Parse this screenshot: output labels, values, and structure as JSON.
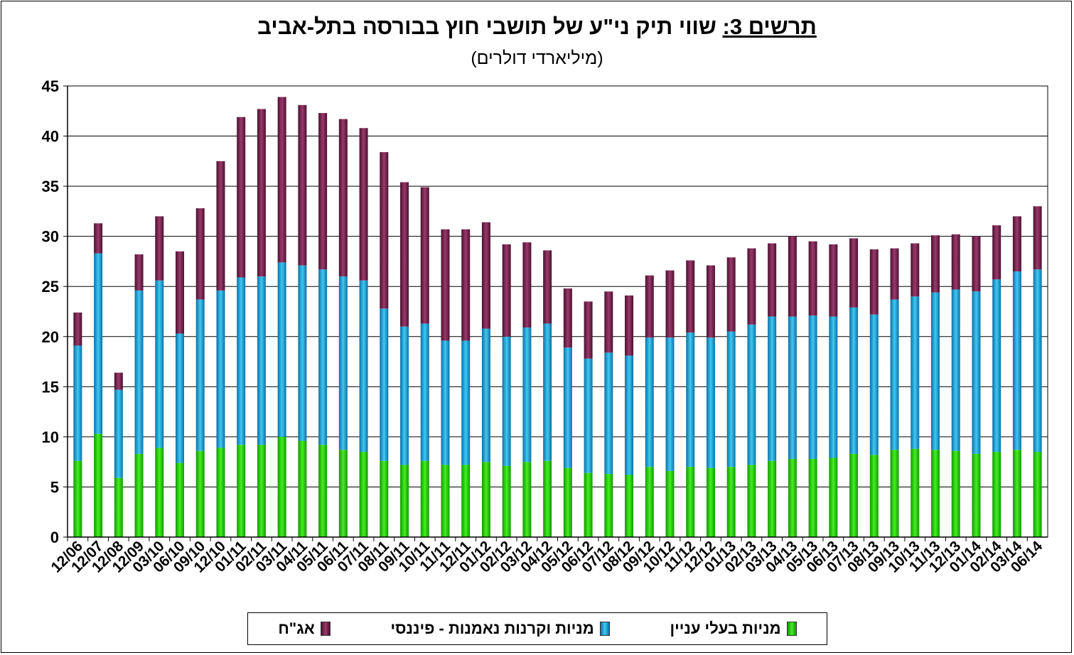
{
  "page": {
    "title_lead": "תרשים 3:",
    "title_rest": " שווי תיק ני\"ע של תושבי חוץ בבורסה בתל-אביב",
    "subtitle": "(מיליארדי דולרים)"
  },
  "colors": {
    "equity_interest": "#22cc00",
    "equity_funds": "#1aa0dc",
    "bonds": "#7a2a52",
    "grid": "#000000"
  },
  "chart_data": {
    "type": "bar",
    "stacked": true,
    "title": "תרשים 3: שווי תיק ני\"ע של תושבי חוץ בבורסה בתל-אביב",
    "subtitle": "(מיליארדי דולרים)",
    "ylim": [
      0,
      45
    ],
    "yticks": [
      0,
      5,
      10,
      15,
      20,
      25,
      30,
      35,
      40,
      45
    ],
    "grid": true,
    "legend_position": "bottom",
    "categories": [
      "12/06",
      "12/07",
      "12/08",
      "12/09",
      "03/10",
      "06/10",
      "09/10",
      "12/10",
      "01/11",
      "02/11",
      "03/11",
      "04/11",
      "05/11",
      "06/11",
      "07/11",
      "08/11",
      "09/11",
      "10/11",
      "11/11",
      "12/11",
      "01/12",
      "02/12",
      "03/12",
      "04/12",
      "05/12",
      "06/12",
      "07/12",
      "08/12",
      "09/12",
      "10/12",
      "11/12",
      "12/12",
      "01/13",
      "02/13",
      "03/13",
      "04/13",
      "05/13",
      "06/13",
      "07/13",
      "08/13",
      "09/13",
      "10/13",
      "11/13",
      "12/13",
      "01/14",
      "02/14",
      "03/14",
      "06/14"
    ],
    "series": [
      {
        "name": "מניות בעלי עניין",
        "values": [
          7.6,
          10.3,
          5.9,
          8.3,
          8.9,
          7.4,
          8.6,
          8.9,
          9.2,
          9.2,
          10.0,
          9.6,
          9.2,
          8.7,
          8.5,
          7.6,
          7.2,
          7.6,
          7.2,
          7.2,
          7.5,
          7.1,
          7.5,
          7.6,
          6.9,
          6.4,
          6.3,
          6.2,
          7.0,
          6.6,
          7.0,
          6.9,
          7.0,
          7.2,
          7.6,
          7.8,
          7.8,
          7.9,
          8.3,
          8.2,
          8.7,
          8.8,
          8.7,
          8.6,
          8.3,
          8.5,
          8.7,
          8.5
        ]
      },
      {
        "name": "מניות וקרנות נאמנות - פיננסי",
        "values": [
          11.5,
          18.0,
          8.8,
          16.3,
          16.7,
          12.9,
          15.1,
          15.7,
          16.7,
          16.8,
          17.4,
          17.5,
          17.5,
          17.3,
          17.1,
          15.2,
          13.8,
          13.7,
          12.4,
          12.4,
          13.3,
          12.9,
          13.4,
          13.7,
          12.0,
          11.4,
          12.1,
          11.9,
          12.9,
          13.3,
          13.4,
          13.0,
          13.5,
          14.0,
          14.4,
          14.2,
          14.3,
          14.1,
          14.6,
          14.0,
          15.0,
          15.2,
          15.7,
          16.1,
          16.2,
          17.2,
          17.8,
          18.2
        ]
      },
      {
        "name": "אג\"ח",
        "values": [
          3.3,
          3.0,
          1.7,
          3.6,
          6.4,
          8.2,
          9.1,
          12.9,
          16.0,
          16.7,
          16.5,
          16.0,
          15.6,
          15.7,
          15.2,
          15.6,
          14.4,
          13.6,
          11.1,
          11.1,
          10.6,
          9.2,
          8.5,
          7.3,
          5.9,
          5.7,
          6.1,
          6.0,
          6.2,
          6.7,
          7.2,
          7.2,
          7.4,
          7.6,
          7.3,
          8.0,
          7.4,
          7.2,
          6.9,
          6.5,
          5.1,
          5.3,
          5.7,
          5.5,
          5.5,
          5.4,
          5.5,
          6.3
        ]
      }
    ]
  }
}
